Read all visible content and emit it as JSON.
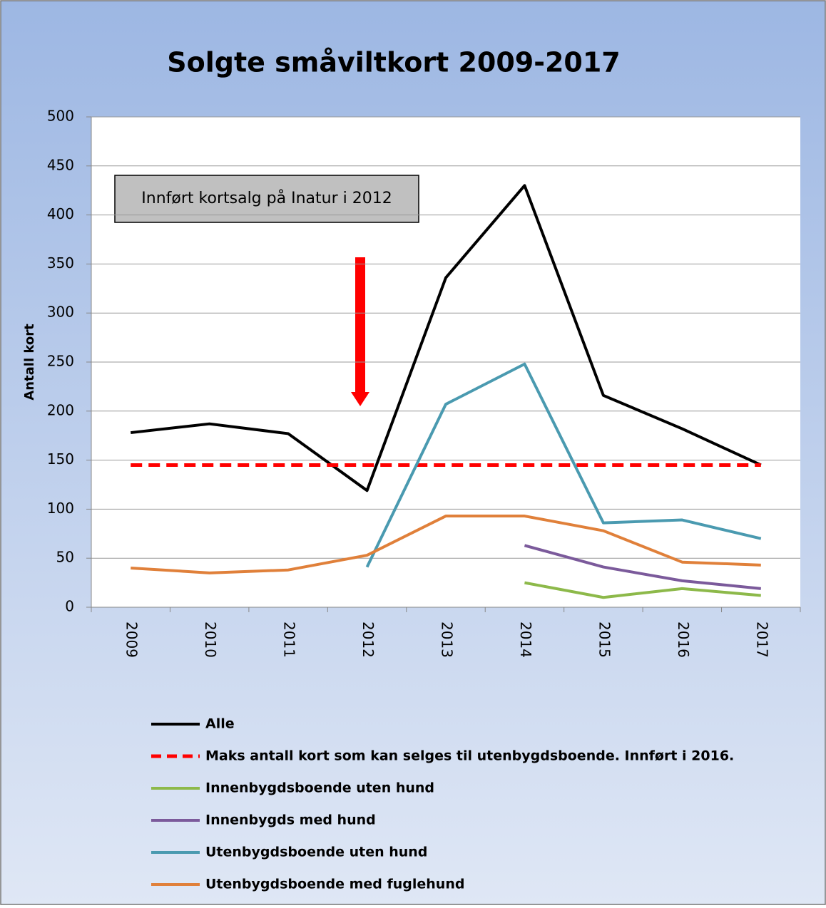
{
  "chart_data": {
    "type": "line",
    "title": "Solgte småviltkort 2009-2017",
    "y_label": "Antall kort",
    "annotation": "Innført kortsalg på Inatur i 2012",
    "categories": [
      "2009",
      "2010",
      "2011",
      "2012",
      "2013",
      "2014",
      "2015",
      "2016",
      "2017"
    ],
    "series": [
      {
        "name": "Alle",
        "color": "#000000",
        "values": [
          178,
          187,
          177,
          119,
          336,
          430,
          216,
          182,
          145
        ]
      },
      {
        "name": "Maks antall kort som kan selges til utenbygdsboende. Innført i 2016.",
        "color": "#ff0000",
        "dashed": true,
        "values": [
          145,
          145,
          145,
          145,
          145,
          145,
          145,
          145,
          145
        ]
      },
      {
        "name": "Innenbygdsboende uten hund",
        "color": "#8db94a",
        "values": [
          null,
          null,
          null,
          null,
          null,
          25,
          10,
          19,
          12
        ]
      },
      {
        "name": "Innenbygds med hund",
        "color": "#7b5a9b",
        "values": [
          null,
          null,
          null,
          null,
          null,
          63,
          41,
          27,
          19
        ]
      },
      {
        "name": "Utenbygdsboende uten hund",
        "color": "#4a9ab0",
        "values": [
          null,
          null,
          null,
          41,
          207,
          248,
          86,
          89,
          70
        ]
      },
      {
        "name": "Utenbygdsboende med fuglehund",
        "color": "#e0803a",
        "values": [
          40,
          35,
          38,
          53,
          93,
          93,
          78,
          46,
          43
        ]
      }
    ],
    "ylim": [
      0,
      500
    ],
    "yticks": [
      0,
      50,
      100,
      150,
      200,
      250,
      300,
      350,
      400,
      450,
      500
    ],
    "grid": true
  }
}
